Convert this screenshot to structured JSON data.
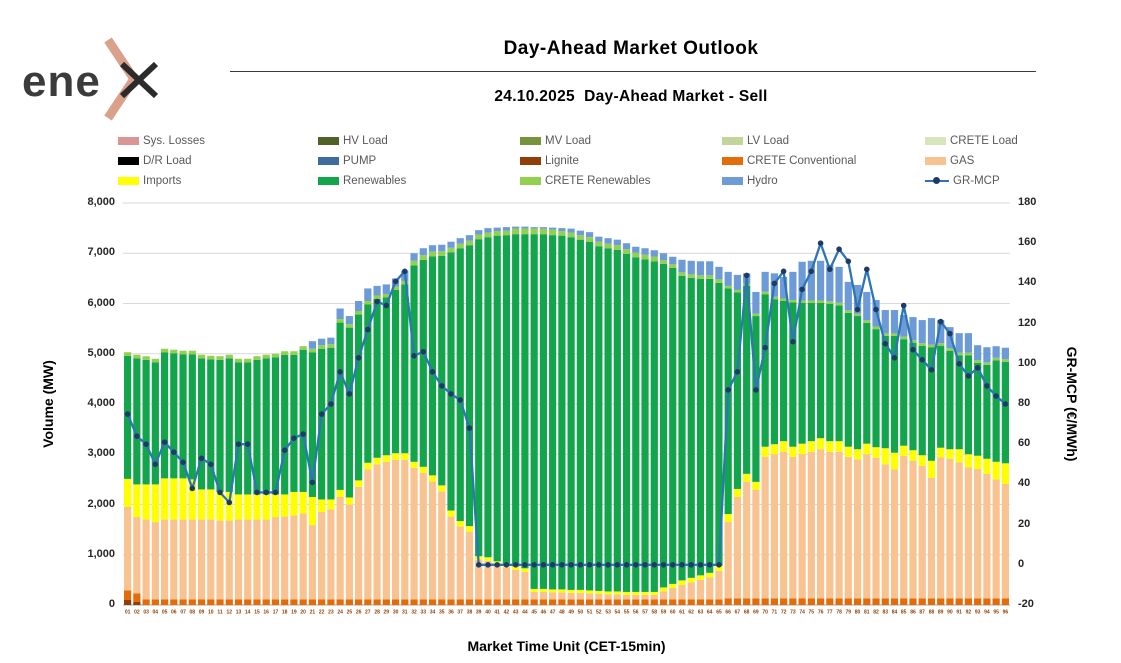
{
  "logo": {
    "text": "ene",
    "accent_color": "#D9A08A",
    "dark_color": "#3B3B3B"
  },
  "header": {
    "title": "Day-Ahead Market Outlook",
    "subtitle": "24.10.2025  Day-Ahead Market - Sell"
  },
  "legend": [
    {
      "label": "Sys. Losses",
      "color": "#D99694",
      "type": "box"
    },
    {
      "label": "HV Load",
      "color": "#4F6228",
      "type": "box"
    },
    {
      "label": "MV Load",
      "color": "#77933C",
      "type": "box"
    },
    {
      "label": "LV Load",
      "color": "#C2D69B",
      "type": "box"
    },
    {
      "label": "CRETE Load",
      "color": "#D7E4BC",
      "type": "box"
    },
    {
      "label": "D/R Load",
      "color": "#000000",
      "type": "box"
    },
    {
      "label": "PUMP",
      "color": "#3F6C9F",
      "type": "box"
    },
    {
      "label": "Lignite",
      "color": "#8F3E08",
      "type": "box"
    },
    {
      "label": "CRETE Conventional",
      "color": "#E36C09",
      "type": "box"
    },
    {
      "label": "GAS",
      "color": "#F8C390",
      "type": "box"
    },
    {
      "label": "Imports",
      "color": "#FFFF00",
      "type": "box"
    },
    {
      "label": "Renewables",
      "color": "#12A54C",
      "type": "box"
    },
    {
      "label": "CRETE Renewables",
      "color": "#92D050",
      "type": "box"
    },
    {
      "label": "Hydro",
      "color": "#6D9BD7",
      "type": "box"
    },
    {
      "label": "GR-MCP",
      "color": "#2E75B6",
      "marker_color": "#1E3B68",
      "type": "line"
    }
  ],
  "chart_data": {
    "type": "bar",
    "subtype": "stacked-bar-with-line",
    "title": "24.10.2025  Day-Ahead Market - Sell",
    "grid": true,
    "legend_position": "top",
    "x_axis": {
      "title": "Market Time Unit (CET-15min)",
      "label_color": "#8F4106",
      "labels": [
        "01",
        "02",
        "03",
        "04",
        "05",
        "06",
        "07",
        "08",
        "09",
        "10",
        "11",
        "12",
        "13",
        "14",
        "15",
        "16",
        "17",
        "18",
        "19",
        "20",
        "21",
        "22",
        "23",
        "24",
        "25",
        "26",
        "27",
        "28",
        "29",
        "30",
        "31",
        "32",
        "33",
        "34",
        "35",
        "36",
        "37",
        "38",
        "39",
        "40",
        "41",
        "42",
        "43",
        "44",
        "45",
        "46",
        "47",
        "48",
        "49",
        "50",
        "51",
        "52",
        "53",
        "54",
        "55",
        "56",
        "57",
        "58",
        "59",
        "60",
        "61",
        "62",
        "63",
        "64",
        "65",
        "66",
        "67",
        "68",
        "69",
        "70",
        "71",
        "72",
        "73",
        "74",
        "75",
        "76",
        "77",
        "78",
        "79",
        "80",
        "81",
        "82",
        "83",
        "84",
        "85",
        "86",
        "87",
        "88",
        "89",
        "90",
        "91",
        "92",
        "93",
        "94",
        "95",
        "96"
      ]
    },
    "left_axis": {
      "title": "Volume (MW)",
      "min": 0,
      "max": 8000,
      "step": 1000,
      "tick_labels": [
        "0",
        "1,000",
        "2,000",
        "3,000",
        "4,000",
        "5,000",
        "6,000",
        "7,000",
        "8,000"
      ]
    },
    "right_axis": {
      "title": "GR-MCP (€/MWh)",
      "min": -20,
      "max": 180,
      "step": 20,
      "tick_labels": [
        "-20",
        "0",
        "20",
        "40",
        "60",
        "80",
        "100",
        "120",
        "140",
        "160",
        "180"
      ]
    },
    "series": [
      {
        "name": "Lignite",
        "color": "#8F3E08",
        "values": [
          100,
          60,
          0,
          0,
          0,
          0,
          0,
          0,
          0,
          0,
          0,
          0,
          0,
          0,
          0,
          0,
          0,
          0,
          0,
          0,
          0,
          0,
          0,
          0,
          0,
          0,
          0,
          0,
          0,
          0,
          0,
          0,
          0,
          0,
          0,
          0,
          0,
          0,
          0,
          0,
          0,
          0,
          0,
          0,
          0,
          0,
          0,
          0,
          0,
          0,
          0,
          0,
          0,
          0,
          0,
          0,
          0,
          0,
          0,
          0,
          0,
          0,
          0,
          0,
          0,
          0,
          0,
          0,
          0,
          0,
          0,
          0,
          0,
          0,
          0,
          0,
          0,
          0,
          0,
          0,
          0,
          0,
          0,
          0,
          0,
          0,
          0,
          0,
          0,
          0,
          0,
          0,
          0,
          0,
          0,
          0
        ]
      },
      {
        "name": "CRETE Conventional",
        "color": "#E36C09",
        "values": [
          190,
          170,
          110,
          110,
          110,
          110,
          110,
          110,
          110,
          110,
          110,
          110,
          110,
          110,
          110,
          110,
          110,
          110,
          110,
          110,
          110,
          110,
          110,
          110,
          110,
          110,
          110,
          110,
          110,
          110,
          110,
          110,
          110,
          110,
          110,
          110,
          110,
          110,
          110,
          110,
          110,
          110,
          110,
          110,
          110,
          110,
          110,
          110,
          110,
          110,
          110,
          110,
          110,
          110,
          110,
          110,
          110,
          110,
          110,
          110,
          110,
          110,
          110,
          110,
          110,
          130,
          130,
          130,
          130,
          130,
          130,
          130,
          130,
          130,
          130,
          130,
          130,
          130,
          130,
          130,
          130,
          130,
          130,
          130,
          130,
          130,
          130,
          130,
          130,
          130,
          130,
          130,
          130,
          130,
          130,
          130
        ]
      },
      {
        "name": "GAS",
        "color": "#F8C390",
        "values": [
          1660,
          1520,
          1590,
          1540,
          1590,
          1590,
          1590,
          1590,
          1590,
          1590,
          1570,
          1570,
          1590,
          1590,
          1590,
          1590,
          1640,
          1650,
          1670,
          1710,
          1480,
          1740,
          1790,
          2040,
          1890,
          2240,
          2590,
          2690,
          2740,
          2780,
          2780,
          2620,
          2520,
          2350,
          2150,
          1650,
          1450,
          1350,
          790,
          770,
          690,
          640,
          590,
          550,
          150,
          150,
          140,
          140,
          130,
          130,
          120,
          110,
          100,
          100,
          90,
          90,
          90,
          90,
          160,
          230,
          290,
          340,
          390,
          440,
          570,
          1520,
          2020,
          2320,
          2160,
          2820,
          2870,
          2920,
          2820,
          2870,
          2920,
          2970,
          2920,
          2920,
          2820,
          2770,
          2870,
          2800,
          2670,
          2570,
          2840,
          2740,
          2640,
          2400,
          2810,
          2780,
          2710,
          2610,
          2580,
          2480,
          2370,
          2280
        ]
      },
      {
        "name": "Imports",
        "color": "#FFFF00",
        "values": [
          560,
          650,
          700,
          750,
          820,
          820,
          820,
          800,
          600,
          600,
          570,
          570,
          500,
          500,
          500,
          500,
          450,
          440,
          470,
          430,
          560,
          250,
          200,
          140,
          140,
          130,
          130,
          130,
          130,
          130,
          130,
          120,
          120,
          120,
          120,
          120,
          110,
          110,
          70,
          70,
          70,
          70,
          70,
          70,
          60,
          60,
          60,
          60,
          60,
          60,
          60,
          60,
          60,
          60,
          60,
          60,
          60,
          60,
          80,
          80,
          90,
          90,
          90,
          90,
          100,
          160,
          160,
          160,
          160,
          200,
          200,
          210,
          200,
          210,
          210,
          220,
          210,
          210,
          200,
          200,
          210,
          210,
          320,
          330,
          200,
          210,
          210,
          340,
          190,
          190,
          260,
          260,
          260,
          300,
          350,
          410
        ]
      },
      {
        "name": "Renewables",
        "color": "#12A54C",
        "values": [
          2450,
          2510,
          2480,
          2430,
          2510,
          2490,
          2470,
          2490,
          2610,
          2590,
          2630,
          2660,
          2630,
          2630,
          2680,
          2710,
          2730,
          2780,
          2730,
          2830,
          2880,
          3000,
          3020,
          3330,
          3380,
          3300,
          3150,
          3160,
          3140,
          3250,
          3360,
          3910,
          4120,
          4360,
          4570,
          5140,
          5430,
          5590,
          6310,
          6370,
          6480,
          6540,
          6610,
          6650,
          7060,
          7060,
          7050,
          7040,
          7020,
          6970,
          6940,
          6860,
          6830,
          6800,
          6730,
          6660,
          6620,
          6580,
          6440,
          6290,
          6060,
          5970,
          5900,
          5850,
          5630,
          4490,
          3910,
          3740,
          3300,
          3035,
          2885,
          2790,
          2870,
          2800,
          2750,
          2690,
          2735,
          2705,
          2665,
          2650,
          2405,
          2350,
          2235,
          2325,
          2120,
          2140,
          2180,
          2260,
          2030,
          1960,
          1870,
          1970,
          1850,
          1870,
          2020,
          2020
        ]
      },
      {
        "name": "CRETE Renewables",
        "color": "#92D050",
        "values": [
          70,
          70,
          70,
          70,
          70,
          70,
          70,
          70,
          70,
          70,
          70,
          70,
          70,
          70,
          70,
          70,
          70,
          70,
          70,
          70,
          70,
          70,
          70,
          70,
          70,
          70,
          70,
          70,
          70,
          70,
          70,
          90,
          90,
          90,
          90,
          90,
          90,
          90,
          90,
          90,
          90,
          90,
          110,
          110,
          110,
          110,
          110,
          90,
          90,
          90,
          90,
          90,
          90,
          90,
          90,
          90,
          90,
          90,
          70,
          70,
          70,
          70,
          70,
          70,
          70,
          50,
          50,
          50,
          50,
          50,
          50,
          50,
          50,
          50,
          50,
          50,
          50,
          50,
          50,
          50,
          50,
          50,
          50,
          50,
          50,
          50,
          50,
          50,
          50,
          50,
          50,
          50,
          50,
          50,
          50,
          50
        ]
      },
      {
        "name": "Hydro",
        "color": "#6D9BD7",
        "values": [
          0,
          0,
          0,
          0,
          0,
          0,
          0,
          0,
          0,
          0,
          0,
          0,
          0,
          0,
          0,
          0,
          0,
          0,
          0,
          0,
          150,
          130,
          130,
          210,
          160,
          200,
          250,
          190,
          190,
          160,
          200,
          150,
          140,
          130,
          130,
          120,
          110,
          110,
          90,
          90,
          70,
          70,
          40,
          40,
          30,
          30,
          40,
          60,
          80,
          90,
          100,
          100,
          110,
          110,
          120,
          120,
          130,
          130,
          140,
          150,
          250,
          270,
          280,
          280,
          250,
          280,
          300,
          200,
          430,
          395,
          465,
          430,
          560,
          770,
          790,
          790,
          725,
          715,
          565,
          570,
          565,
          530,
          465,
          465,
          430,
          460,
          460,
          530,
          460,
          420,
          390,
          390,
          300,
          300,
          230,
          230
        ]
      }
    ],
    "line_series": {
      "name": "GR-MCP",
      "axis": "right",
      "color": "#2E75B6",
      "marker_color": "#1E3B68",
      "values": [
        75,
        64,
        60,
        50,
        61,
        56,
        51,
        38,
        53,
        50,
        36,
        31,
        60,
        60,
        36,
        36,
        36,
        57,
        63,
        65,
        41,
        75,
        80,
        96,
        85,
        103,
        117,
        131,
        129,
        141,
        146,
        104,
        106,
        96,
        89,
        85,
        82,
        68,
        0,
        0,
        0,
        0,
        0,
        0,
        0,
        0,
        0,
        0,
        0,
        0,
        0,
        0,
        0,
        0,
        0,
        0,
        0,
        0,
        0,
        0,
        0,
        0,
        0,
        0,
        0,
        87,
        96,
        144,
        87,
        108,
        140,
        146,
        111,
        137,
        146,
        160,
        147,
        157,
        151,
        127,
        147,
        127,
        110,
        103,
        129,
        107,
        102,
        97,
        121,
        115,
        100,
        94,
        98,
        89,
        84,
        80
      ]
    }
  }
}
